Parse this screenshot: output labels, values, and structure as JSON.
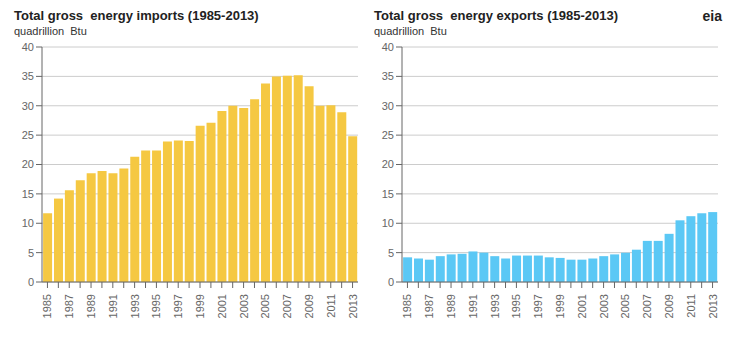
{
  "chart_data": [
    {
      "type": "bar",
      "title": "Total gross  energy imports (1985-2013)",
      "subtitle": "quadrillion  Btu",
      "categories": [
        "1985",
        null,
        "1987",
        null,
        "1989",
        null,
        "1991",
        null,
        "1993",
        null,
        "1995",
        null,
        "1997",
        null,
        "1999",
        null,
        "2001",
        null,
        "2003",
        null,
        "2005",
        null,
        "2007",
        null,
        "2009",
        null,
        "2011",
        null,
        "2013"
      ],
      "values": [
        11.7,
        14.2,
        15.6,
        17.3,
        18.5,
        18.9,
        18.5,
        19.3,
        21.3,
        22.4,
        22.4,
        23.9,
        24.1,
        24.0,
        26.6,
        27.1,
        29.1,
        30.0,
        29.6,
        31.1,
        33.8,
        35.0,
        35.1,
        35.2,
        33.3,
        30.0,
        30.1,
        28.9,
        24.8
      ],
      "color": "#F5C842",
      "ylim": [
        0,
        40
      ],
      "yticks": [
        0,
        5,
        10,
        15,
        20,
        25,
        30,
        35,
        40
      ],
      "grid": true
    },
    {
      "type": "bar",
      "title": "Total gross  energy exports (1985-2013)",
      "subtitle": "quadrillion  Btu",
      "categories": [
        "1985",
        null,
        "1987",
        null,
        "1989",
        null,
        "1991",
        null,
        "1993",
        null,
        "1995",
        null,
        "1997",
        null,
        "1999",
        null,
        "2001",
        null,
        "2003",
        null,
        "2005",
        null,
        "2007",
        null,
        "2009",
        null,
        "2011",
        null,
        "2013"
      ],
      "values": [
        4.2,
        4.0,
        3.8,
        4.4,
        4.7,
        4.8,
        5.2,
        5.0,
        4.4,
        4.0,
        4.5,
        4.5,
        4.5,
        4.2,
        4.1,
        3.8,
        3.8,
        4.0,
        4.4,
        4.7,
        5.0,
        5.5,
        7.0,
        7.0,
        8.2,
        10.5,
        11.2,
        11.7,
        11.9
      ],
      "color": "#5BC8F5",
      "ylim": [
        0,
        40
      ],
      "yticks": [
        0,
        5,
        10,
        15,
        20,
        25,
        30,
        35,
        40
      ],
      "grid": true,
      "annotations": [
        "eia"
      ]
    }
  ]
}
